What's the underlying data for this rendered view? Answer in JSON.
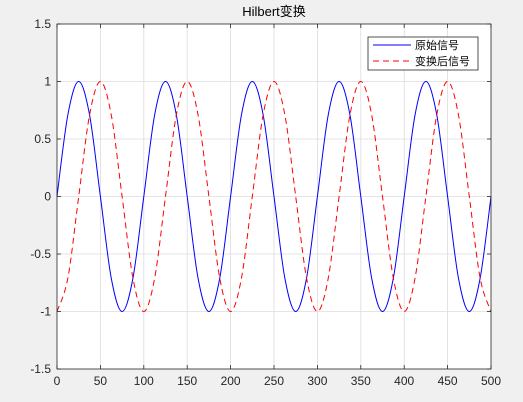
{
  "chart_data": {
    "type": "line",
    "title": "Hilbert变换",
    "xlabel": "",
    "ylabel": "",
    "xlim": [
      0,
      500
    ],
    "ylim": [
      -1.5,
      1.5
    ],
    "x_ticks": [
      0,
      50,
      100,
      150,
      200,
      250,
      300,
      350,
      400,
      450,
      500
    ],
    "y_ticks": [
      -1.5,
      -1,
      -0.5,
      0,
      0.5,
      1,
      1.5
    ],
    "x_tick_labels": [
      "0",
      "50",
      "100",
      "150",
      "200",
      "250",
      "300",
      "350",
      "400",
      "450",
      "500"
    ],
    "y_tick_labels": [
      "-1.5",
      "-1",
      "-0.5",
      "0",
      "0.5",
      "1",
      "1.5"
    ],
    "grid": true,
    "legend_position": "top-right",
    "x": [
      0,
      12.5,
      25,
      37.5,
      50,
      62.5,
      75,
      87.5,
      100,
      112.5,
      125,
      137.5,
      150,
      162.5,
      175,
      187.5,
      200,
      212.5,
      225,
      237.5,
      250,
      262.5,
      275,
      287.5,
      300,
      312.5,
      325,
      337.5,
      350,
      362.5,
      375,
      387.5,
      400,
      412.5,
      425,
      437.5,
      450,
      462.5,
      475,
      487.5,
      500
    ],
    "series": [
      {
        "name": "原始信号",
        "color": "#0000ff",
        "style": "solid",
        "values": [
          0,
          0.71,
          1,
          0.71,
          0,
          -0.71,
          -1,
          -0.71,
          0,
          0.71,
          1,
          0.71,
          0,
          -0.71,
          -1,
          -0.71,
          0,
          0.71,
          1,
          0.71,
          0,
          -0.71,
          -1,
          -0.71,
          0,
          0.71,
          1,
          0.71,
          0,
          -0.71,
          -1,
          -0.71,
          0,
          0.71,
          1,
          0.71,
          0,
          -0.71,
          -1,
          -0.71,
          0
        ]
      },
      {
        "name": "变换后信号",
        "color": "#ff0000",
        "style": "dashed",
        "values": [
          -1,
          -0.71,
          0,
          0.71,
          1,
          0.71,
          0,
          -0.71,
          -1,
          -0.71,
          0,
          0.71,
          1,
          0.71,
          0,
          -0.71,
          -1,
          -0.71,
          0,
          0.71,
          1,
          0.71,
          0,
          -0.71,
          -1,
          -0.71,
          0,
          0.71,
          1,
          0.71,
          0,
          -0.71,
          -1,
          -0.71,
          0,
          0.71,
          1,
          0.71,
          0,
          -0.71,
          -1
        ]
      }
    ]
  }
}
